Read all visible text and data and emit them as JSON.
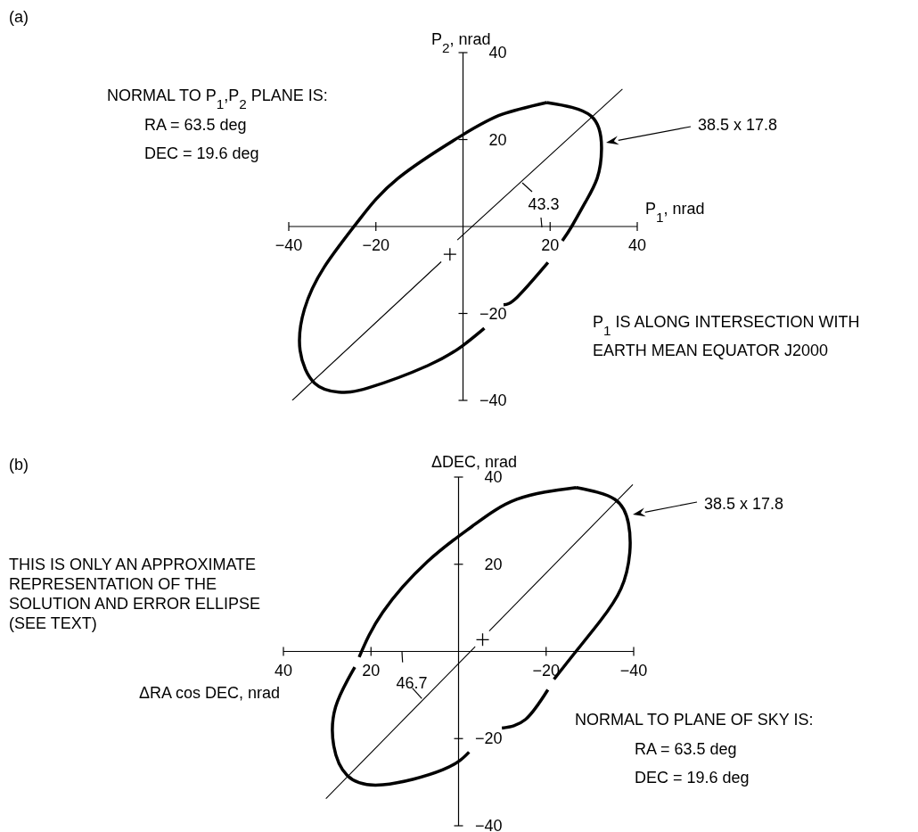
{
  "chart_data": [
    {
      "type": "line",
      "xlabel": "P$_{1}$, nrad",
      "ylabel": "P$_{2}$, nrad",
      "xlim": [
        -40,
        40
      ],
      "ylim": [
        -40,
        40
      ],
      "xticks": [
        -40,
        -20,
        20,
        40
      ],
      "yticks": [
        -40,
        -20,
        20,
        40
      ],
      "marker": "none",
      "series": [
        {
          "type": "line",
          "color": "#000000",
          "x": [
            19.2,
            29.4,
            31.8,
            30.8,
            28.1,
            25.0,
            22.8,
            null,
            19.5,
            12.4,
            9.3,
            null,
            4.9,
            -0.2,
            -8.1,
            -21.7,
            -28.5,
            -34.0,
            -37.4,
            -36.4,
            -31.9,
            -24.1,
            -14.9,
            -0.2,
            9.0,
            19.2
          ],
          "values": [
            28.5,
            25.4,
            17.9,
            11.1,
            5.6,
            0.1,
            -3.3,
            null,
            -8.3,
            -16.3,
            -18.0,
            null,
            -23.4,
            -27.5,
            -32.0,
            -37.1,
            -38.1,
            -36.1,
            -28.5,
            -19.0,
            -9.4,
            1.2,
            11.1,
            21.0,
            25.8,
            28.5
          ]
        },
        {
          "type": "line",
          "color": "#000000",
          "x": [
            -39.2,
            -5.0,
            null,
            -1.3,
            36.6
          ],
          "values": [
            -40,
            -8.1,
            null,
            -3.1,
            31.6
          ]
        },
        {
          "type": "scatter",
          "color": "#000000",
          "marker": "cross",
          "x": [
            -3.0
          ],
          "values": [
            -6.4
          ]
        }
      ],
      "annotations": [
        "(a)",
        "NORMAL TO P$_{1}$,P$_{2}$ PLANE IS:",
        "RA = 63.5 deg",
        "DEC = 19.6 deg",
        "38.5 x 17.8",
        "43.3",
        "P$_{1}$ IS ALONG INTERSECTION WITH",
        "EARTH MEAN EQUATOR J2000"
      ]
    },
    {
      "type": "line",
      "xlabel": "ΔRA cos DEC, nrad",
      "ylabel": "ΔDEC, nrad",
      "xlim": [
        40,
        -40
      ],
      "ylim": [
        -40,
        40
      ],
      "xticks": [
        40,
        20,
        -20,
        -40
      ],
      "yticks": [
        -40,
        -20,
        20,
        40
      ],
      "marker": "none",
      "series": [
        {
          "type": "line",
          "color": "#000000",
          "x": [
            -26.9,
            -35.7,
            -38.8,
            -39.1,
            -37.1,
            -32.3,
            -26.9,
            -21.8,
            null,
            -20.4,
            -15.3,
            -9.9,
            null,
            -2.4,
            3.7,
            17.3,
            25.4,
            28.5,
            28.1,
            23.7,
            null,
            22.7,
            17.3,
            7.1,
            -3.1,
            -13.3,
            -26.9
          ],
          "values": [
            37.6,
            34.9,
            29.4,
            22.6,
            14.4,
            6.9,
            0.1,
            -6.4,
            null,
            -8.8,
            -15.6,
            -17.6,
            null,
            -23.1,
            -27.2,
            -30.6,
            -28.5,
            -21.7,
            -12.8,
            -3.6,
            null,
            -1.3,
            9.0,
            20.6,
            28.7,
            34.9,
            37.6
          ]
        },
        {
          "type": "line",
          "color": "#000000",
          "x": [
            30.3,
            -3.8,
            null,
            -7.0,
            -39.8
          ],
          "values": [
            -33.8,
            1.1,
            null,
            4.7,
            38.3
          ]
        },
        {
          "type": "scatter",
          "color": "#000000",
          "marker": "cross",
          "x": [
            -5.5
          ],
          "values": [
            2.7
          ]
        }
      ],
      "annotations": [
        "(b)",
        "THIS IS ONLY AN APPROXIMATE",
        "REPRESENTATION OF THE",
        "SOLUTION AND ERROR ELLIPSE",
        "(SEE TEXT)",
        "38.5 x 17.8",
        "46.7",
        "NORMAL TO PLANE OF SKY IS:",
        "RA = 63.5 deg",
        "DEC = 19.6 deg"
      ]
    }
  ]
}
